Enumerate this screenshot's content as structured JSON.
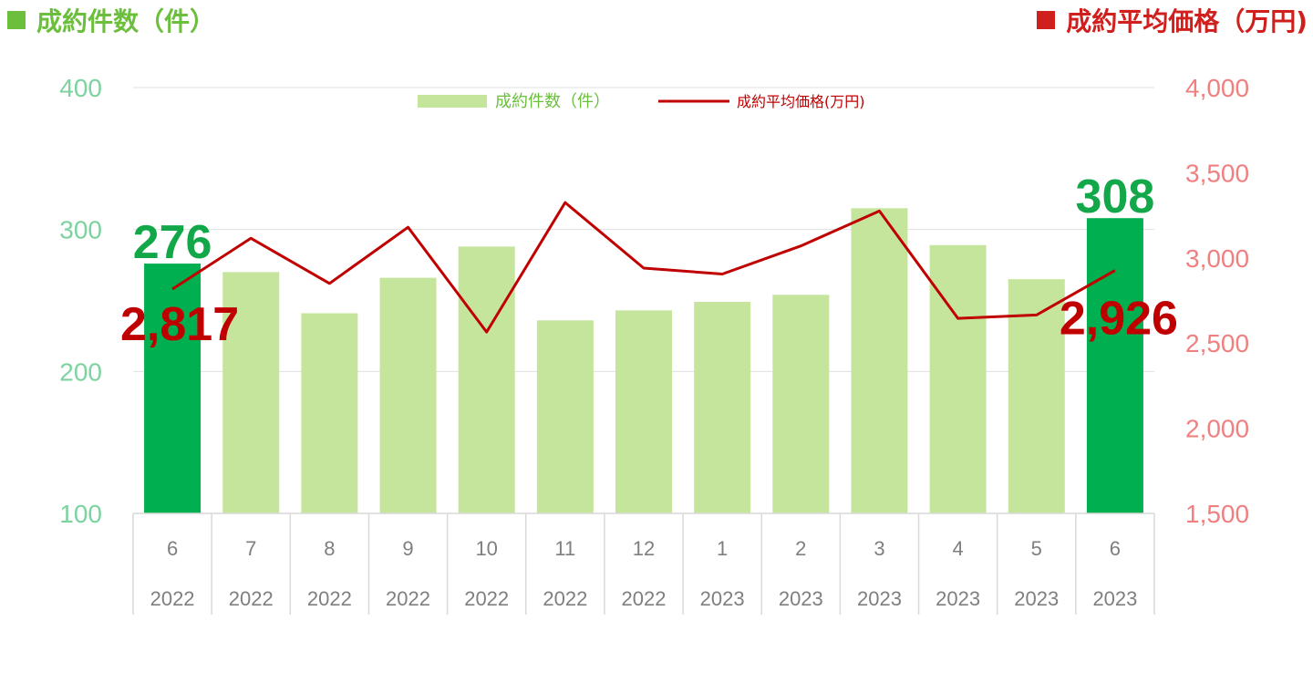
{
  "header": {
    "left_title": "成約件数（件）",
    "right_title": "成約平均価格（万円)"
  },
  "colors": {
    "bar_light": "#c5e59d",
    "bar_highlight": "#00b050",
    "line": "#c00000",
    "left_axis": "#7dd3a0",
    "right_axis": "#f08080",
    "grid": "#e0e0e0"
  },
  "chart_data": {
    "type": "bar",
    "categories": [
      {
        "month": "6",
        "year": "2022"
      },
      {
        "month": "7",
        "year": "2022"
      },
      {
        "month": "8",
        "year": "2022"
      },
      {
        "month": "9",
        "year": "2022"
      },
      {
        "month": "10",
        "year": "2022"
      },
      {
        "month": "11",
        "year": "2022"
      },
      {
        "month": "12",
        "year": "2022"
      },
      {
        "month": "1",
        "year": "2023"
      },
      {
        "month": "2",
        "year": "2023"
      },
      {
        "month": "3",
        "year": "2023"
      },
      {
        "month": "4",
        "year": "2023"
      },
      {
        "month": "5",
        "year": "2023"
      },
      {
        "month": "6",
        "year": "2023"
      }
    ],
    "series": [
      {
        "name": "成約件数（件）",
        "type": "bar",
        "axis": "left",
        "values": [
          276,
          270,
          241,
          266,
          288,
          236,
          243,
          249,
          254,
          315,
          289,
          265,
          308
        ],
        "highlight": [
          true,
          false,
          false,
          false,
          false,
          false,
          false,
          false,
          false,
          false,
          false,
          false,
          true
        ]
      },
      {
        "name": "成約平均価格(万円)",
        "type": "line",
        "axis": "right",
        "values": [
          2817,
          3115,
          2850,
          3180,
          2565,
          3325,
          2940,
          2905,
          3070,
          3275,
          2645,
          2665,
          2926
        ]
      }
    ],
    "y_left": {
      "min": 100,
      "max": 400,
      "ticks": [
        "100",
        "200",
        "300",
        "400"
      ]
    },
    "y_right": {
      "min": 1500,
      "max": 4000,
      "ticks": [
        "1,500",
        "2,000",
        "2,500",
        "3,000",
        "3,500",
        "4,000"
      ]
    },
    "callouts": {
      "bar_first": "276",
      "bar_last": "308",
      "price_first": "2,817",
      "price_last": "2,926"
    },
    "legend_position": "top-center",
    "grid": true
  }
}
